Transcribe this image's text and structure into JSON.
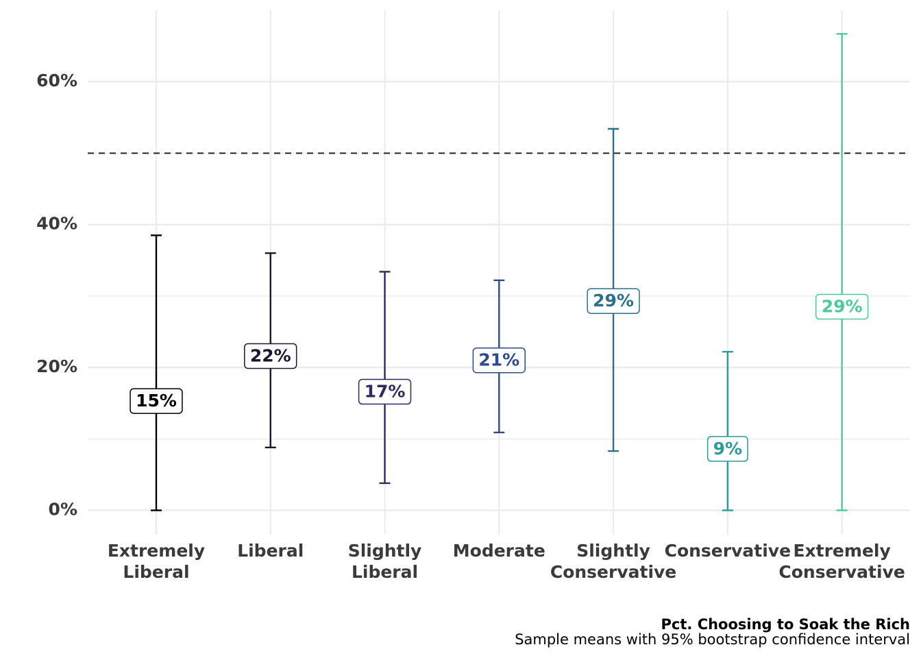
{
  "chart_data": {
    "type": "errorbar",
    "title": "Pct. Choosing to Soak the Rich",
    "subtitle": "Sample means with 95% bootstrap confidence interval",
    "categories": [
      "Extremely\nLiberal",
      "Liberal",
      "Slightly\nLiberal",
      "Moderate",
      "Slightly\nConservative",
      "Conservative",
      "Extremely\nConservative"
    ],
    "values": [
      15.3,
      21.6,
      16.6,
      21.0,
      29.3,
      8.6,
      28.5
    ],
    "value_labels": [
      "15%",
      "22%",
      "17%",
      "21%",
      "29%",
      "9%",
      "29%"
    ],
    "lower": [
      0,
      8.8,
      3.8,
      10.9,
      8.3,
      0,
      0
    ],
    "upper": [
      38.5,
      36.0,
      33.4,
      32.2,
      53.4,
      22.2,
      66.7
    ],
    "colors": [
      "#000000",
      "#1c1530",
      "#2e2a5e",
      "#2f4a8a",
      "#2b6f8d",
      "#2d9a98",
      "#4ec99a"
    ],
    "ylim": [
      -3.4,
      70
    ],
    "yticks": [
      {
        "value": 0,
        "label": "0%"
      },
      {
        "value": 20,
        "label": "20%"
      },
      {
        "value": 40,
        "label": "40%"
      },
      {
        "value": 60,
        "label": "60%"
      }
    ],
    "minor_yticks": [
      10,
      30,
      50
    ],
    "reference_line": 50,
    "grid": true
  }
}
